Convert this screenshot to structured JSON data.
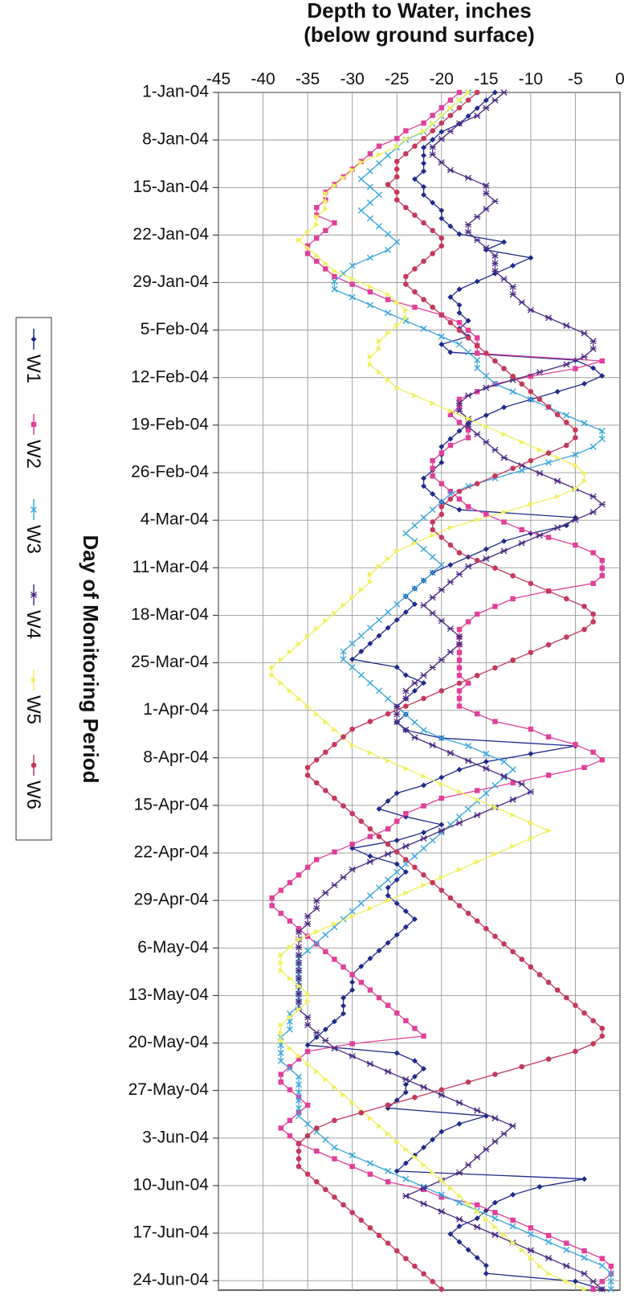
{
  "chart_data": {
    "type": "line",
    "xlabel": "Day of Monitoring Period",
    "ylabel": [
      "Depth to Water, inches",
      "(below ground surface)"
    ],
    "x_ticks": [
      "1-Jan-04",
      "8-Jan-04",
      "15-Jan-04",
      "22-Jan-04",
      "29-Jan-04",
      "5-Feb-04",
      "12-Feb-04",
      "19-Feb-04",
      "26-Feb-04",
      "4-Mar-04",
      "11-Mar-04",
      "18-Mar-04",
      "25-Mar-04",
      "1-Apr-04",
      "8-Apr-04",
      "15-Apr-04",
      "22-Apr-04",
      "29-Apr-04",
      "6-May-04",
      "13-May-04",
      "20-May-04",
      "27-May-04",
      "3-Jun-04",
      "10-Jun-04",
      "17-Jun-04",
      "24-Jun-04"
    ],
    "y_ticks": [
      "0",
      "-5",
      "-10",
      "-15",
      "-20",
      "-25",
      "-30",
      "-35",
      "-40",
      "-45"
    ],
    "ylim": [
      0,
      -45
    ],
    "grid": true,
    "legend_position": "bottom",
    "colors": {
      "W1": "#1f2a8a",
      "W2": "#e0409a",
      "W3": "#3aa6dd",
      "W4": "#4b2d83",
      "W5": "#f0f060",
      "W6": "#c4395c"
    },
    "series": [
      {
        "name": "W1",
        "marker": "diamond",
        "values": [
          -14,
          -15,
          -16,
          -17,
          -18,
          -20,
          -21,
          -22,
          -22,
          -22,
          -22,
          -23,
          -22,
          -22,
          -21,
          -20,
          -20,
          -19,
          -18,
          -13,
          -15,
          -10,
          -12,
          -14,
          -16,
          -18,
          -19,
          -18,
          -18,
          -17,
          -18,
          -17,
          -20,
          -19,
          -5,
          -3,
          -2,
          -4,
          -7,
          -10,
          -13,
          -15,
          -17,
          -18,
          -19,
          -20,
          -20,
          -20,
          -21,
          -22,
          -22,
          -21,
          -20,
          -18,
          -5,
          -6,
          -10,
          -13,
          -15,
          -17,
          -19,
          -21,
          -22,
          -23,
          -24,
          -23,
          -24,
          -25,
          -26,
          -27,
          -28,
          -29,
          -30,
          -25,
          -24,
          -22,
          -23,
          -24,
          -25,
          -24,
          -25,
          -24,
          -20,
          -5,
          -10,
          -15,
          -18,
          -20,
          -22,
          -25,
          -26,
          -27,
          -24,
          -20,
          -22,
          -25,
          -30,
          -28,
          -25,
          -24,
          -25,
          -26,
          -26,
          -25,
          -24,
          -23,
          -24,
          -25,
          -26,
          -27,
          -28,
          -29,
          -30,
          -30,
          -30,
          -31,
          -31,
          -31,
          -32,
          -33,
          -34,
          -35,
          -25,
          -23,
          -22,
          -23,
          -24,
          -24,
          -25,
          -26,
          -15,
          -18,
          -20,
          -21,
          -22,
          -23,
          -24,
          -25,
          -4,
          -9,
          -12,
          -14,
          -15,
          -16,
          -18,
          -19,
          -18,
          -17,
          -16,
          -15,
          -15,
          -5,
          -2
        ]
      },
      {
        "name": "W2",
        "marker": "square",
        "values": [
          -18,
          -19,
          -20,
          -21,
          -22,
          -24,
          -25,
          -27,
          -28,
          -29,
          -30,
          -31,
          -32,
          -33,
          -33,
          -34,
          -34,
          -32,
          -33,
          -34,
          -35,
          -35,
          -34,
          -33,
          -32,
          -30,
          -28,
          -26,
          -23,
          -20,
          -18,
          -17,
          -16,
          -16,
          -16,
          -2,
          -5,
          -10,
          -14,
          -16,
          -18,
          -18,
          -19,
          -18,
          -17,
          -17,
          -19,
          -20,
          -21,
          -21,
          -21,
          -20,
          -19,
          -18,
          -17,
          -15,
          -13,
          -11,
          -8,
          -5,
          -3,
          -2,
          -2,
          -2,
          -3,
          -8,
          -12,
          -14,
          -16,
          -17,
          -18,
          -18,
          -18,
          -18,
          -18,
          -18,
          -18,
          -17,
          -18,
          -18,
          -18,
          -16,
          -14,
          -10,
          -8,
          -5,
          -3,
          -2,
          -4,
          -8,
          -12,
          -16,
          -20,
          -22,
          -24,
          -25,
          -26,
          -28,
          -30,
          -32,
          -34,
          -35,
          -36,
          -37,
          -38,
          -39,
          -39,
          -38,
          -37,
          -36,
          -35,
          -34,
          -33,
          -32,
          -31,
          -30,
          -29,
          -28,
          -27,
          -26,
          -25,
          -24,
          -23,
          -22,
          -30,
          -35,
          -36,
          -37,
          -38,
          -38,
          -37,
          -36,
          -35,
          -36,
          -37,
          -38,
          -37,
          -36,
          -34,
          -32,
          -30,
          -28,
          -26,
          -22,
          -20,
          -16,
          -14,
          -12,
          -10,
          -8,
          -6,
          -4,
          -2,
          -1,
          -1,
          -2,
          -3
        ]
      },
      {
        "name": "W3",
        "marker": "x",
        "values": [
          -17,
          -18,
          -19,
          -20,
          -21,
          -22,
          -24,
          -25,
          -26,
          -27,
          -28,
          -29,
          -28,
          -27,
          -28,
          -29,
          -28,
          -27,
          -26,
          -25,
          -26,
          -28,
          -30,
          -31,
          -32,
          -32,
          -30,
          -28,
          -26,
          -24,
          -22,
          -20,
          -18,
          -17,
          -16,
          -16,
          -15,
          -14,
          -12,
          -10,
          -8,
          -6,
          -4,
          -2,
          -2,
          -3,
          -5,
          -8,
          -11,
          -14,
          -17,
          -19,
          -20,
          -21,
          -22,
          -23,
          -24,
          -23,
          -22,
          -21,
          -20,
          -21,
          -22,
          -23,
          -24,
          -25,
          -26,
          -27,
          -28,
          -29,
          -30,
          -31,
          -31,
          -30,
          -29,
          -28,
          -27,
          -26,
          -25,
          -24,
          -23,
          -22,
          -20,
          -17,
          -15,
          -13,
          -12,
          -13,
          -14,
          -15,
          -16,
          -17,
          -18,
          -19,
          -20,
          -21,
          -22,
          -23,
          -24,
          -25,
          -26,
          -27,
          -28,
          -29,
          -30,
          -31,
          -32,
          -33,
          -34,
          -35,
          -36,
          -36,
          -36,
          -36,
          -36,
          -36,
          -36,
          -37,
          -37,
          -37,
          -38,
          -38,
          -38,
          -38,
          -37,
          -36,
          -36,
          -36,
          -36,
          -36,
          -36,
          -35,
          -34,
          -33,
          -32,
          -30,
          -28,
          -26,
          -24,
          -22,
          -20,
          -18,
          -16,
          -14,
          -12,
          -10,
          -8,
          -6,
          -4,
          -2,
          -1,
          -1,
          -1
        ]
      },
      {
        "name": "W4",
        "marker": "asterisk",
        "values": [
          -13,
          -14,
          -15,
          -16,
          -18,
          -19,
          -20,
          -21,
          -21,
          -20,
          -19,
          -17,
          -15,
          -15,
          -14,
          -15,
          -16,
          -17,
          -17,
          -16,
          -15,
          -14,
          -14,
          -14,
          -13,
          -12,
          -12,
          -11,
          -10,
          -8,
          -6,
          -4,
          -3,
          -3,
          -4,
          -6,
          -9,
          -12,
          -15,
          -17,
          -18,
          -18,
          -17,
          -17,
          -16,
          -15,
          -14,
          -13,
          -11,
          -9,
          -7,
          -5,
          -3,
          -2,
          -3,
          -5,
          -7,
          -9,
          -11,
          -13,
          -15,
          -17,
          -18,
          -19,
          -20,
          -21,
          -22,
          -21,
          -20,
          -19,
          -18,
          -18,
          -19,
          -20,
          -21,
          -22,
          -23,
          -24,
          -24,
          -25,
          -25,
          -25,
          -24,
          -23,
          -21,
          -19,
          -17,
          -15,
          -13,
          -11,
          -10,
          -12,
          -14,
          -16,
          -18,
          -20,
          -22,
          -24,
          -26,
          -28,
          -30,
          -31,
          -32,
          -33,
          -34,
          -34,
          -35,
          -35,
          -36,
          -36,
          -36,
          -36,
          -36,
          -36,
          -36,
          -36,
          -36,
          -36,
          -36,
          -35,
          -35,
          -34,
          -33,
          -32,
          -30,
          -28,
          -26,
          -24,
          -22,
          -20,
          -18,
          -16,
          -14,
          -12,
          -13,
          -14,
          -15,
          -16,
          -17,
          -18,
          -20,
          -22,
          -24,
          -22,
          -20,
          -18,
          -16,
          -14,
          -12,
          -10,
          -8,
          -6,
          -4,
          -3,
          -2
        ]
      },
      {
        "name": "W5",
        "marker": "triangle",
        "values": [
          -17,
          -18,
          -19,
          -20,
          -21,
          -22,
          -24,
          -25,
          -27,
          -29,
          -30,
          -31,
          -32,
          -33,
          -33,
          -33,
          -34,
          -34,
          -35,
          -36,
          -35,
          -34,
          -33,
          -32,
          -30,
          -28,
          -26,
          -25,
          -24,
          -24,
          -25,
          -26,
          -27,
          -27,
          -28,
          -28,
          -27,
          -26,
          -25,
          -23,
          -21,
          -19,
          -17,
          -15,
          -13,
          -11,
          -9,
          -7,
          -5,
          -4,
          -4,
          -5,
          -7,
          -10,
          -13,
          -16,
          -19,
          -21,
          -23,
          -25,
          -26,
          -27,
          -28,
          -28,
          -29,
          -30,
          -31,
          -32,
          -33,
          -34,
          -35,
          -36,
          -37,
          -38,
          -39,
          -39,
          -38,
          -37,
          -36,
          -35,
          -34,
          -33,
          -32,
          -31,
          -30,
          -28,
          -26,
          -24,
          -22,
          -20,
          -18,
          -16,
          -14,
          -12,
          -10,
          -8,
          -10,
          -12,
          -14,
          -16,
          -18,
          -20,
          -22,
          -24,
          -26,
          -28,
          -30,
          -32,
          -34,
          -36,
          -37,
          -38,
          -38,
          -38,
          -37,
          -36,
          -35,
          -35,
          -36,
          -37,
          -38,
          -38,
          -38,
          -37,
          -36,
          -35,
          -34,
          -33,
          -32,
          -31,
          -30,
          -29,
          -28,
          -27,
          -26,
          -25,
          -24,
          -23,
          -22,
          -21,
          -20,
          -19,
          -18,
          -17,
          -16,
          -15,
          -14,
          -13,
          -12,
          -11,
          -10,
          -9,
          -8,
          -6,
          -4
        ]
      },
      {
        "name": "W6",
        "marker": "circle",
        "values": [
          -16,
          -17,
          -18,
          -19,
          -20,
          -21,
          -22,
          -23,
          -24,
          -25,
          -25,
          -25,
          -26,
          -25,
          -25,
          -24,
          -23,
          -22,
          -21,
          -20,
          -20,
          -21,
          -22,
          -23,
          -24,
          -24,
          -23,
          -22,
          -21,
          -20,
          -19,
          -18,
          -17,
          -16,
          -15,
          -14,
          -13,
          -12,
          -11,
          -10,
          -9,
          -8,
          -7,
          -6,
          -5,
          -5,
          -6,
          -8,
          -10,
          -12,
          -14,
          -16,
          -18,
          -19,
          -20,
          -20,
          -21,
          -21,
          -20,
          -19,
          -18,
          -16,
          -14,
          -12,
          -10,
          -8,
          -6,
          -4,
          -3,
          -3,
          -4,
          -6,
          -8,
          -10,
          -12,
          -14,
          -16,
          -18,
          -20,
          -22,
          -24,
          -26,
          -28,
          -30,
          -31,
          -32,
          -33,
          -34,
          -35,
          -35,
          -34,
          -33,
          -32,
          -31,
          -30,
          -29,
          -28,
          -27,
          -26,
          -25,
          -24,
          -23,
          -22,
          -21,
          -20,
          -19,
          -18,
          -17,
          -16,
          -15,
          -14,
          -13,
          -12,
          -11,
          -10,
          -9,
          -8,
          -7,
          -6,
          -5,
          -4,
          -3,
          -2,
          -2,
          -3,
          -5,
          -8,
          -11,
          -14,
          -17,
          -20,
          -23,
          -26,
          -29,
          -32,
          -34,
          -35,
          -36,
          -36,
          -36,
          -36,
          -35,
          -34,
          -33,
          -32,
          -31,
          -30,
          -29,
          -28,
          -27,
          -26,
          -25,
          -24,
          -23,
          -22,
          -21,
          -20
        ]
      }
    ]
  }
}
